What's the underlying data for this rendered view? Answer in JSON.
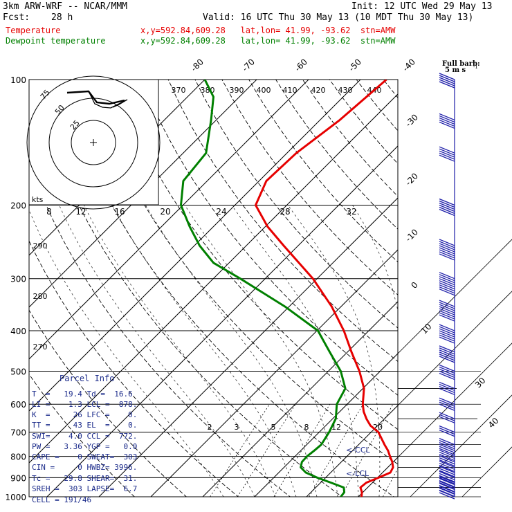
{
  "header": {
    "model": "3km ARW-WRF -- NCAR/MMM",
    "init": "Init: 12 UTC Wed 29 May 13",
    "fcst_label": "Fcst:",
    "fcst_value": "28 h",
    "valid": "Valid: 16 UTC Thu 30 May 13 (10 MDT Thu 30 May 13)",
    "temp_label": "Temperature",
    "dew_label": "Dewpoint temperature",
    "loc_temp": "x,y=592.84,609.28   lat,lon= 41.99, -93.62  stn=AMW",
    "loc_dew": "x,y=592.84,609.28   lat,lon= 41.99, -93.62  stn=AMW",
    "barb_title": "Full barb:",
    "barb_unit": "5 m s",
    "barb_unit_sup": "-1"
  },
  "colors": {
    "temperature": "#e60000",
    "dewpoint": "#008000",
    "text_blue": "#1a2a8a"
  },
  "chart_data": {
    "type": "line",
    "y_axis": "pressure (hPa), log scale",
    "ylim": [
      1000,
      100
    ],
    "pressure_ticks": [
      "100",
      "200",
      "300",
      "400",
      "500",
      "600",
      "700",
      "800",
      "900",
      "1000"
    ],
    "temperature_isotherm_labels": [
      "-80",
      "-70",
      "-60",
      "-50",
      "-40",
      "-30",
      "-20",
      "-10",
      "0",
      "10",
      "30",
      "40"
    ],
    "theta_labels_top": [
      "370",
      "380",
      "390",
      "400",
      "410",
      "420",
      "430",
      "440"
    ],
    "theta_labels_left": [
      "290",
      "280",
      "270"
    ],
    "mixing_ratio_labels": [
      "2",
      "3",
      "5",
      "8",
      "12",
      "20"
    ],
    "series": [
      {
        "name": "Temperature",
        "points": [
          [
            1000,
            20.6
          ],
          [
            975,
            19.8
          ],
          [
            950,
            18.6
          ],
          [
            925,
            18.8
          ],
          [
            900,
            20.2
          ],
          [
            875,
            21.5
          ],
          [
            850,
            21.0
          ],
          [
            825,
            19.8
          ],
          [
            800,
            18.3
          ],
          [
            775,
            16.8
          ],
          [
            750,
            15.0
          ],
          [
            700,
            11.4
          ],
          [
            675,
            8.6
          ],
          [
            650,
            6.5
          ],
          [
            625,
            4.6
          ],
          [
            600,
            3.0
          ],
          [
            550,
            0.2
          ],
          [
            500,
            -4.0
          ],
          [
            450,
            -9.2
          ],
          [
            400,
            -14.8
          ],
          [
            350,
            -21.8
          ],
          [
            300,
            -30.8
          ],
          [
            250,
            -42.8
          ],
          [
            225,
            -49.6
          ],
          [
            200,
            -56.0
          ],
          [
            175,
            -58.6
          ],
          [
            150,
            -58.2
          ],
          [
            125,
            -56.2
          ],
          [
            100,
            -55.0
          ]
        ]
      },
      {
        "name": "Dewpoint temperature",
        "points": [
          [
            1000,
            16.6
          ],
          [
            975,
            16.4
          ],
          [
            950,
            15.4
          ],
          [
            925,
            12.0
          ],
          [
            900,
            8.4
          ],
          [
            875,
            5.2
          ],
          [
            850,
            3.2
          ],
          [
            825,
            2.4
          ],
          [
            800,
            2.3
          ],
          [
            775,
            2.6
          ],
          [
            750,
            2.8
          ],
          [
            700,
            1.9
          ],
          [
            650,
            0.6
          ],
          [
            600,
            -2.0
          ],
          [
            550,
            -3.4
          ],
          [
            500,
            -7.6
          ],
          [
            450,
            -13.4
          ],
          [
            400,
            -19.8
          ],
          [
            350,
            -30.8
          ],
          [
            300,
            -44.8
          ],
          [
            275,
            -53.0
          ],
          [
            250,
            -59.0
          ],
          [
            225,
            -64.6
          ],
          [
            200,
            -70.4
          ],
          [
            175,
            -74.6
          ],
          [
            150,
            -75.6
          ],
          [
            125,
            -81.0
          ],
          [
            110,
            -85.0
          ],
          [
            100,
            -90.0
          ]
        ]
      }
    ],
    "hodograph": {
      "ring_labels": [
        "75",
        "50",
        "25"
      ],
      "axis_unit": "kts",
      "axis_labels": [
        "8",
        "12",
        "16",
        "20",
        "24",
        "28",
        "32"
      ]
    },
    "wind_barbs": {
      "pressures": [
        1000,
        975,
        950,
        925,
        900,
        875,
        850,
        825,
        800,
        775,
        750,
        700,
        650,
        600,
        550,
        500,
        450,
        400,
        350,
        300,
        250,
        200,
        150,
        125,
        100
      ],
      "speeds_kt": [
        10,
        15,
        20,
        20,
        20,
        15,
        15,
        15,
        15,
        15,
        15,
        15,
        15,
        20,
        20,
        25,
        30,
        35,
        40,
        45,
        40,
        30,
        25,
        25,
        25
      ]
    },
    "parcel_markers": [
      "<-CCL",
      "<-LCL"
    ]
  },
  "parcel_info": {
    "title": "Parcel Info",
    "rows": [
      "T  =   19.4 Td =  16.6",
      "LI =    1.3 LCL =  878.",
      "K  =     26 LFC =    0.",
      "TT =     43 EL  =    0.",
      "SWI=    4.0 CCL =  772.",
      "PW =   3.36 YGP =   0.0",
      "CAPE =    0 SWEAT=  303",
      "CIN =     0 HWBZ= 3996.",
      "Tc =   29.8 SHEAR=  31.",
      "SREH =  303 LAPSE=  6.7",
      "CELL = 191/46"
    ]
  }
}
